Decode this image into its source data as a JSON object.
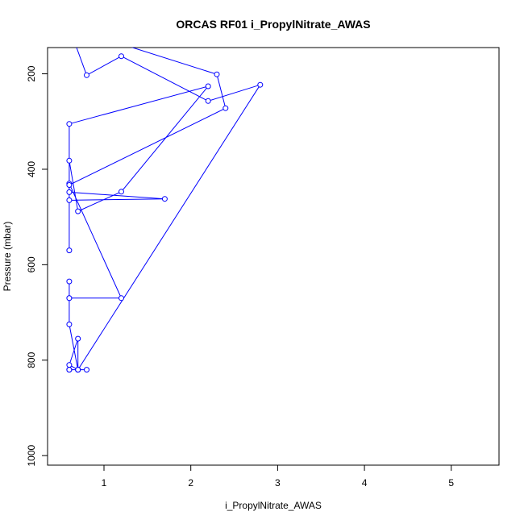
{
  "chart_data": {
    "type": "line",
    "title": "ORCAS RF01 i_PropylNitrate_AWAS",
    "xlabel": "i_PropylNitrate_AWAS",
    "ylabel": "Pressure (mbar)",
    "xlim": [
      0.35,
      5.55
    ],
    "ylim": [
      1020,
      145
    ],
    "y_inverted": true,
    "x_ticks": [
      1,
      2,
      3,
      4,
      5
    ],
    "y_ticks": [
      200,
      400,
      600,
      800,
      1000
    ],
    "grid": false,
    "series": [
      {
        "color": "#0000ff",
        "x": [
          0.7,
          0.6,
          0.7,
          0.7,
          0.6,
          0.6,
          0.6,
          0.6,
          1.2,
          0.6,
          0.6,
          0.6,
          1.7,
          0.6,
          0.6,
          0.7,
          1.2,
          2.2,
          0.6,
          0.6,
          2.4,
          2.3,
          0.6,
          0.8,
          1.2,
          2.2,
          2.8,
          0.7,
          0.6,
          0.6,
          0.7,
          0.8
        ],
        "y": [
          820,
          810,
          755,
          820,
          725,
          670,
          635,
          670,
          670,
          430,
          570,
          465,
          462,
          448,
          382,
          488,
          447,
          226,
          305,
          433,
          272,
          201,
          103,
          203,
          163,
          257,
          223,
          820,
          820,
          820,
          820,
          820
        ]
      }
    ]
  }
}
